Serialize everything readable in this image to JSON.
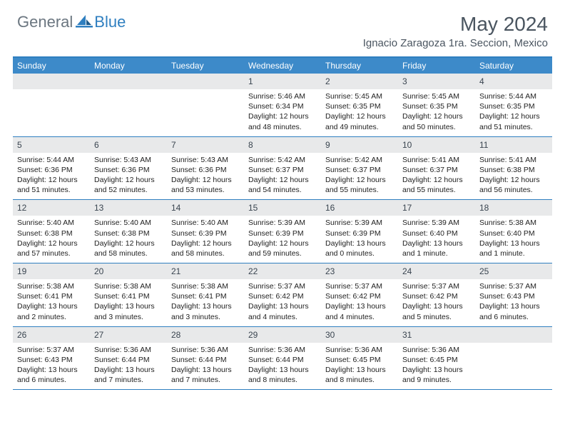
{
  "brand": {
    "part1": "General",
    "part2": "Blue"
  },
  "title": "May 2024",
  "location": "Ignacio Zaragoza 1ra. Seccion, Mexico",
  "colors": {
    "header_blue": "#3d8ac9",
    "border_blue": "#2f7fc0",
    "daynum_bg": "#e8e9ea",
    "text_gray": "#4a5560"
  },
  "day_names": [
    "Sunday",
    "Monday",
    "Tuesday",
    "Wednesday",
    "Thursday",
    "Friday",
    "Saturday"
  ],
  "weeks": [
    [
      {
        "n": "",
        "sr": "",
        "ss": "",
        "dl": ""
      },
      {
        "n": "",
        "sr": "",
        "ss": "",
        "dl": ""
      },
      {
        "n": "",
        "sr": "",
        "ss": "",
        "dl": ""
      },
      {
        "n": "1",
        "sr": "5:46 AM",
        "ss": "6:34 PM",
        "dl": "12 hours and 48 minutes."
      },
      {
        "n": "2",
        "sr": "5:45 AM",
        "ss": "6:35 PM",
        "dl": "12 hours and 49 minutes."
      },
      {
        "n": "3",
        "sr": "5:45 AM",
        "ss": "6:35 PM",
        "dl": "12 hours and 50 minutes."
      },
      {
        "n": "4",
        "sr": "5:44 AM",
        "ss": "6:35 PM",
        "dl": "12 hours and 51 minutes."
      }
    ],
    [
      {
        "n": "5",
        "sr": "5:44 AM",
        "ss": "6:36 PM",
        "dl": "12 hours and 51 minutes."
      },
      {
        "n": "6",
        "sr": "5:43 AM",
        "ss": "6:36 PM",
        "dl": "12 hours and 52 minutes."
      },
      {
        "n": "7",
        "sr": "5:43 AM",
        "ss": "6:36 PM",
        "dl": "12 hours and 53 minutes."
      },
      {
        "n": "8",
        "sr": "5:42 AM",
        "ss": "6:37 PM",
        "dl": "12 hours and 54 minutes."
      },
      {
        "n": "9",
        "sr": "5:42 AM",
        "ss": "6:37 PM",
        "dl": "12 hours and 55 minutes."
      },
      {
        "n": "10",
        "sr": "5:41 AM",
        "ss": "6:37 PM",
        "dl": "12 hours and 55 minutes."
      },
      {
        "n": "11",
        "sr": "5:41 AM",
        "ss": "6:38 PM",
        "dl": "12 hours and 56 minutes."
      }
    ],
    [
      {
        "n": "12",
        "sr": "5:40 AM",
        "ss": "6:38 PM",
        "dl": "12 hours and 57 minutes."
      },
      {
        "n": "13",
        "sr": "5:40 AM",
        "ss": "6:38 PM",
        "dl": "12 hours and 58 minutes."
      },
      {
        "n": "14",
        "sr": "5:40 AM",
        "ss": "6:39 PM",
        "dl": "12 hours and 58 minutes."
      },
      {
        "n": "15",
        "sr": "5:39 AM",
        "ss": "6:39 PM",
        "dl": "12 hours and 59 minutes."
      },
      {
        "n": "16",
        "sr": "5:39 AM",
        "ss": "6:39 PM",
        "dl": "13 hours and 0 minutes."
      },
      {
        "n": "17",
        "sr": "5:39 AM",
        "ss": "6:40 PM",
        "dl": "13 hours and 1 minute."
      },
      {
        "n": "18",
        "sr": "5:38 AM",
        "ss": "6:40 PM",
        "dl": "13 hours and 1 minute."
      }
    ],
    [
      {
        "n": "19",
        "sr": "5:38 AM",
        "ss": "6:41 PM",
        "dl": "13 hours and 2 minutes."
      },
      {
        "n": "20",
        "sr": "5:38 AM",
        "ss": "6:41 PM",
        "dl": "13 hours and 3 minutes."
      },
      {
        "n": "21",
        "sr": "5:38 AM",
        "ss": "6:41 PM",
        "dl": "13 hours and 3 minutes."
      },
      {
        "n": "22",
        "sr": "5:37 AM",
        "ss": "6:42 PM",
        "dl": "13 hours and 4 minutes."
      },
      {
        "n": "23",
        "sr": "5:37 AM",
        "ss": "6:42 PM",
        "dl": "13 hours and 4 minutes."
      },
      {
        "n": "24",
        "sr": "5:37 AM",
        "ss": "6:42 PM",
        "dl": "13 hours and 5 minutes."
      },
      {
        "n": "25",
        "sr": "5:37 AM",
        "ss": "6:43 PM",
        "dl": "13 hours and 6 minutes."
      }
    ],
    [
      {
        "n": "26",
        "sr": "5:37 AM",
        "ss": "6:43 PM",
        "dl": "13 hours and 6 minutes."
      },
      {
        "n": "27",
        "sr": "5:36 AM",
        "ss": "6:44 PM",
        "dl": "13 hours and 7 minutes."
      },
      {
        "n": "28",
        "sr": "5:36 AM",
        "ss": "6:44 PM",
        "dl": "13 hours and 7 minutes."
      },
      {
        "n": "29",
        "sr": "5:36 AM",
        "ss": "6:44 PM",
        "dl": "13 hours and 8 minutes."
      },
      {
        "n": "30",
        "sr": "5:36 AM",
        "ss": "6:45 PM",
        "dl": "13 hours and 8 minutes."
      },
      {
        "n": "31",
        "sr": "5:36 AM",
        "ss": "6:45 PM",
        "dl": "13 hours and 9 minutes."
      },
      {
        "n": "",
        "sr": "",
        "ss": "",
        "dl": ""
      }
    ]
  ],
  "labels": {
    "sunrise": "Sunrise:",
    "sunset": "Sunset:",
    "daylight": "Daylight:"
  }
}
